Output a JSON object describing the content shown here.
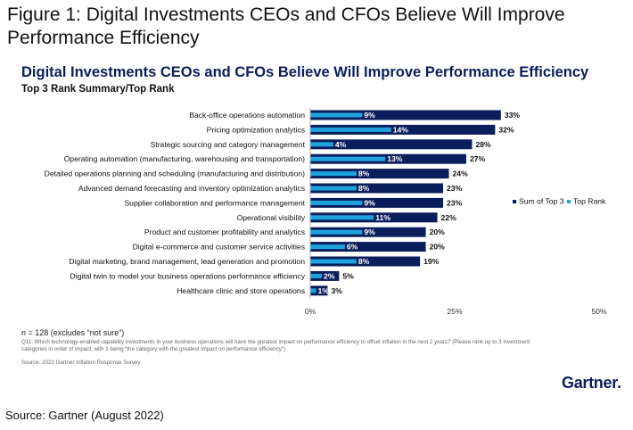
{
  "figure": {
    "title": "Figure 1: Digital Investments CEOs and CFOs Believe Will Improve Performance Efficiency",
    "source": "Source: Gartner (August 2022)"
  },
  "colors": {
    "dark_series": "#0a1e5c",
    "light_series": "#1fa3dc",
    "title": "#0a1e5c"
  },
  "chart_data": {
    "type": "bar",
    "orientation": "horizontal",
    "title": "Digital Investments CEOs and CFOs Believe Will Improve Performance Efficiency",
    "subtitle": "Top 3 Rank Summary/Top Rank",
    "categories": [
      "Back-office operations automation",
      "Pricing optimization analytics",
      "Strategic sourcing and category management",
      "Operating automation (manufacturing, warehousing and transportation)",
      "Detailed operations planning and scheduling (manufacturing and distribution)",
      "Advanced demand forecasting and inventory optimization analytics",
      "Supplier collaboration and performance management",
      "Operational visibility",
      "Product and customer profitability and analytics",
      "Digital e-commerce and customer service activities",
      "Digital marketing, brand management, lead generation and promotion",
      "Digital twin to model your business operations performance efficiency",
      "Healthcare clinic and store operations"
    ],
    "series": [
      {
        "name": "Sum of Top 3",
        "values": [
          33,
          32,
          28,
          27,
          24,
          23,
          23,
          22,
          20,
          20,
          19,
          5,
          3
        ],
        "labels": [
          "33%",
          "32%",
          "28%",
          "27%",
          "24%",
          "23%",
          "23%",
          "22%",
          "20%",
          "20%",
          "19%",
          "5%",
          "3%"
        ]
      },
      {
        "name": "Top Rank",
        "values": [
          9,
          14,
          4,
          13,
          8,
          8,
          9,
          11,
          9,
          6,
          8,
          2,
          1
        ],
        "labels": [
          "9%",
          "14%",
          "4%",
          "13%",
          "8%",
          "8%",
          "9%",
          "11%",
          "9%",
          "6%",
          "8%",
          "2%",
          "1%"
        ]
      }
    ],
    "xlim": [
      0,
      50
    ],
    "xticks": [
      0,
      25,
      50
    ],
    "xtick_labels": [
      "0%",
      "25%",
      "50%"
    ],
    "legend_position": "right",
    "grid": false
  },
  "notes": {
    "n": "n = 128 (excludes “not sure”)",
    "question": "Q11: Which technology-enabled capability investments in your business operations will have the greatest impact on performance efficiency to offset inflation in the next 2 years? (Please rank up to 3 investment categories in order of impact, with 1 being “the category with the greatest impact on performance efficiency”)",
    "source": "Source: 2022 Gartner Inflation Response Survey"
  },
  "brand": {
    "logo_text": "Gartner",
    "logo_dot": "."
  }
}
